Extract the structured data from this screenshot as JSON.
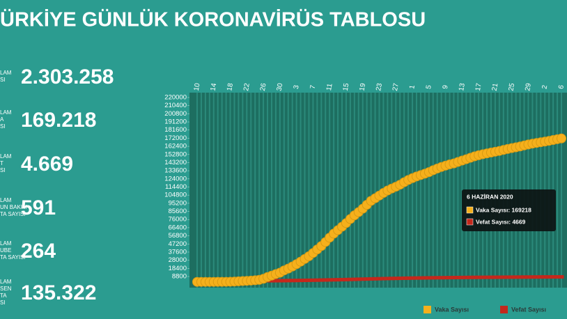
{
  "header": {
    "title": "ÜRKİYE GÜNLÜK KORONAVİRÜS TABLOSU"
  },
  "stats": [
    {
      "label": [
        "LAM",
        "SI"
      ],
      "value": "2.303.258"
    },
    {
      "label": [
        "LAM",
        "A",
        "SI"
      ],
      "value": "169.218"
    },
    {
      "label": [
        "LAM",
        "T",
        "SI"
      ],
      "value": "4.669"
    },
    {
      "label": [
        "LAM",
        "UN BAKIM",
        "TA SAYISI"
      ],
      "value": "591"
    },
    {
      "label": [
        "LAM",
        "UBE",
        "TA SAYISI"
      ],
      "value": "264"
    },
    {
      "label": [
        "LAM",
        "SEN",
        "TA",
        "SI"
      ],
      "value": "135.322"
    }
  ],
  "chart_data": {
    "type": "scatter",
    "categories": [
      "10",
      null,
      null,
      null,
      "14",
      null,
      null,
      null,
      "18",
      null,
      null,
      null,
      "22",
      null,
      null,
      null,
      "26",
      null,
      null,
      null,
      "30",
      null,
      null,
      null,
      "3",
      null,
      null,
      null,
      "7",
      null,
      null,
      null,
      "11",
      null,
      null,
      null,
      "15",
      null,
      null,
      null,
      "19",
      null,
      null,
      null,
      "23",
      null,
      null,
      null,
      "27",
      null,
      null,
      null,
      "1",
      null,
      null,
      null,
      "5",
      null,
      null,
      null,
      "9",
      null,
      null,
      null,
      "13",
      null,
      null,
      null,
      "17",
      null,
      null,
      null,
      "21",
      null,
      null,
      null,
      "25",
      null,
      null,
      null,
      "29",
      null,
      null,
      null,
      "2",
      null,
      null,
      null,
      "6"
    ],
    "series": [
      {
        "name": "Vaka Sayısı",
        "color": "#f5b01c",
        "values": [
          0,
          1,
          1,
          5,
          6,
          18,
          47,
          98,
          191,
          359,
          670,
          947,
          1236,
          1529,
          1872,
          2433,
          3629,
          5698,
          7402,
          9217,
          10827,
          13531,
          15679,
          18135,
          20921,
          23934,
          27069,
          30217,
          34109,
          38226,
          42282,
          47029,
          52167,
          56956,
          61049,
          65111,
          69392,
          74193,
          78546,
          82329,
          86306,
          90980,
          95591,
          98674,
          101790,
          104912,
          107773,
          110130,
          112261,
          114653,
          117589,
          120204,
          122392,
          124375,
          126045,
          127659,
          129491,
          131744,
          133721,
          135569,
          137115,
          138657,
          139771,
          141475,
          143114,
          144749,
          146457,
          148067,
          149435,
          150593,
          151615,
          152587,
          153548,
          154500,
          155686,
          156827,
          157814,
          158762,
          159797,
          160979,
          162120,
          163103,
          163942,
          164769,
          165555,
          166422,
          167410,
          168340,
          169218
        ]
      },
      {
        "name": "Vefat Sayısı",
        "color": "#c4281c",
        "values": [
          0,
          0,
          0,
          0,
          0,
          0,
          0,
          1,
          2,
          3,
          9,
          21,
          30,
          37,
          44,
          59,
          75,
          92,
          108,
          131,
          168,
          214,
          277,
          356,
          425,
          501,
          574,
          649,
          725,
          812,
          908,
          1006,
          1101,
          1198,
          1296,
          1403,
          1518,
          1643,
          1769,
          1890,
          2017,
          2140,
          2259,
          2376,
          2491,
          2600,
          2706,
          2805,
          2900,
          2992,
          3081,
          3174,
          3258,
          3336,
          3397,
          3461,
          3520,
          3584,
          3641,
          3689,
          3739,
          3786,
          3841,
          3894,
          3952,
          4007,
          4055,
          4096,
          4140,
          4171,
          4199,
          4222,
          4249,
          4276,
          4308,
          4340,
          4369,
          4397,
          4431,
          4461,
          4489,
          4515,
          4540,
          4585,
          4609,
          4630,
          4648,
          4662,
          4669
        ]
      }
    ],
    "ylim": [
      0,
      220000
    ],
    "yticks": [
      8800,
      18400,
      28000,
      37600,
      47200,
      56800,
      66400,
      76000,
      85600,
      95200,
      104800,
      114400,
      124000,
      133600,
      143200,
      152800,
      162400,
      172000,
      181600,
      191200,
      200800,
      210400,
      220000
    ],
    "tooltip": {
      "title": "6 HAZİRAN 2020",
      "lines": [
        "Vaka Sayısı: 169218",
        "Vefat Sayısı: 4669"
      ]
    }
  }
}
